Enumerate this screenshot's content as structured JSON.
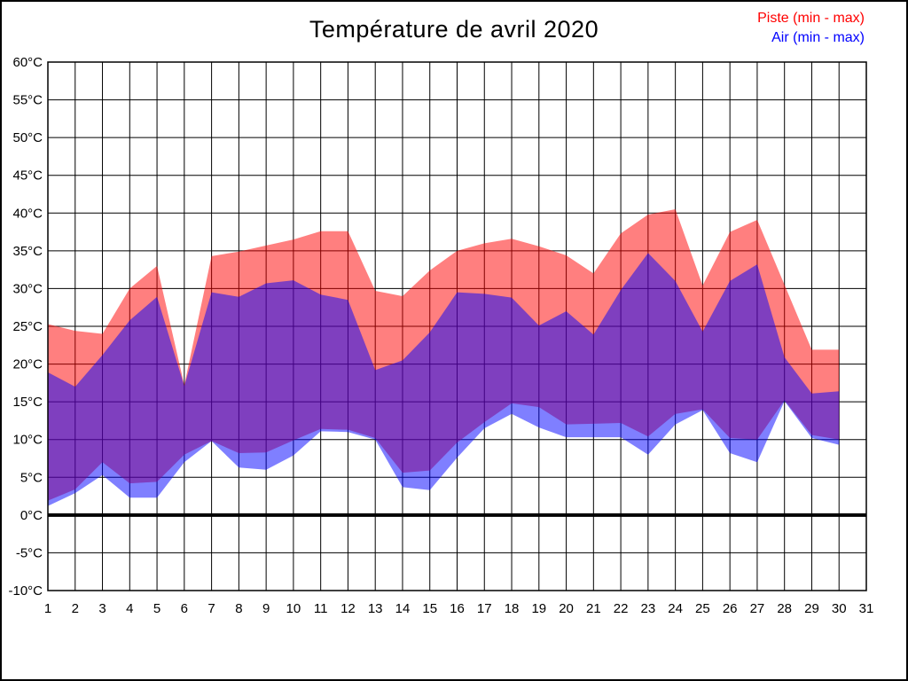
{
  "title": "Température de avril 2020",
  "legend": [
    {
      "label": "Piste (min - max)",
      "color": "#ff0000"
    },
    {
      "label": "Air (min - max)",
      "color": "#0000ff"
    }
  ],
  "chart_data": {
    "type": "area",
    "subtype": "min-max range bands, overlap renders purple",
    "x_days": [
      1,
      2,
      3,
      4,
      5,
      6,
      7,
      8,
      9,
      10,
      11,
      12,
      13,
      14,
      15,
      16,
      17,
      18,
      19,
      20,
      21,
      22,
      23,
      24,
      25,
      26,
      27,
      28,
      29,
      30
    ],
    "series": [
      {
        "name": "Piste (min - max)",
        "color": "#ff0000",
        "fill_opacity": 0.5,
        "min": [
          1.9,
          3.4,
          7.0,
          4.2,
          4.4,
          8.0,
          9.8,
          8.2,
          8.3,
          9.9,
          11.4,
          11.3,
          10.2,
          5.6,
          5.9,
          9.6,
          12.3,
          14.8,
          14.3,
          12.0,
          12.1,
          12.2,
          10.4,
          13.4,
          14.0,
          10.2,
          10.0,
          15.2,
          10.6,
          10.0
        ],
        "max": [
          25.3,
          24.4,
          24.0,
          30.0,
          33.0,
          17.2,
          34.3,
          34.9,
          35.7,
          36.5,
          37.6,
          37.6,
          29.7,
          29.0,
          32.4,
          35.0,
          36.0,
          36.6,
          35.6,
          34.4,
          32.0,
          37.3,
          39.8,
          40.5,
          30.4,
          37.5,
          39.1,
          30.5,
          21.9,
          21.9
        ]
      },
      {
        "name": "Air (min - max)",
        "color": "#0000ff",
        "fill_opacity": 0.5,
        "min": [
          1.2,
          2.9,
          5.3,
          2.3,
          2.3,
          7.0,
          9.8,
          6.3,
          6.0,
          7.9,
          11.1,
          11.0,
          10.0,
          3.7,
          3.3,
          7.6,
          11.5,
          13.4,
          11.6,
          10.3,
          10.3,
          10.3,
          8.0,
          12.0,
          13.9,
          8.2,
          7.0,
          15.1,
          10.2,
          9.3
        ],
        "max": [
          18.9,
          17.0,
          21.2,
          25.8,
          28.9,
          17.1,
          29.5,
          28.9,
          30.7,
          31.1,
          29.2,
          28.5,
          19.2,
          20.5,
          24.2,
          29.5,
          29.3,
          28.8,
          25.1,
          27.0,
          23.9,
          29.8,
          34.7,
          31.0,
          24.3,
          31.0,
          33.2,
          20.9,
          16.1,
          16.4
        ]
      }
    ],
    "xlim": [
      1,
      31
    ],
    "ylim": [
      -10,
      60
    ],
    "ytick_step": 5,
    "ytick_suffix": "°C",
    "xtick_labels": [
      1,
      2,
      3,
      4,
      5,
      6,
      7,
      8,
      9,
      10,
      11,
      12,
      13,
      14,
      15,
      16,
      17,
      18,
      19,
      20,
      21,
      22,
      23,
      24,
      25,
      26,
      27,
      28,
      29,
      30,
      31
    ],
    "zero_line": 0,
    "grid": true,
    "grid_color": "#000000",
    "axis_color": "#000000"
  }
}
